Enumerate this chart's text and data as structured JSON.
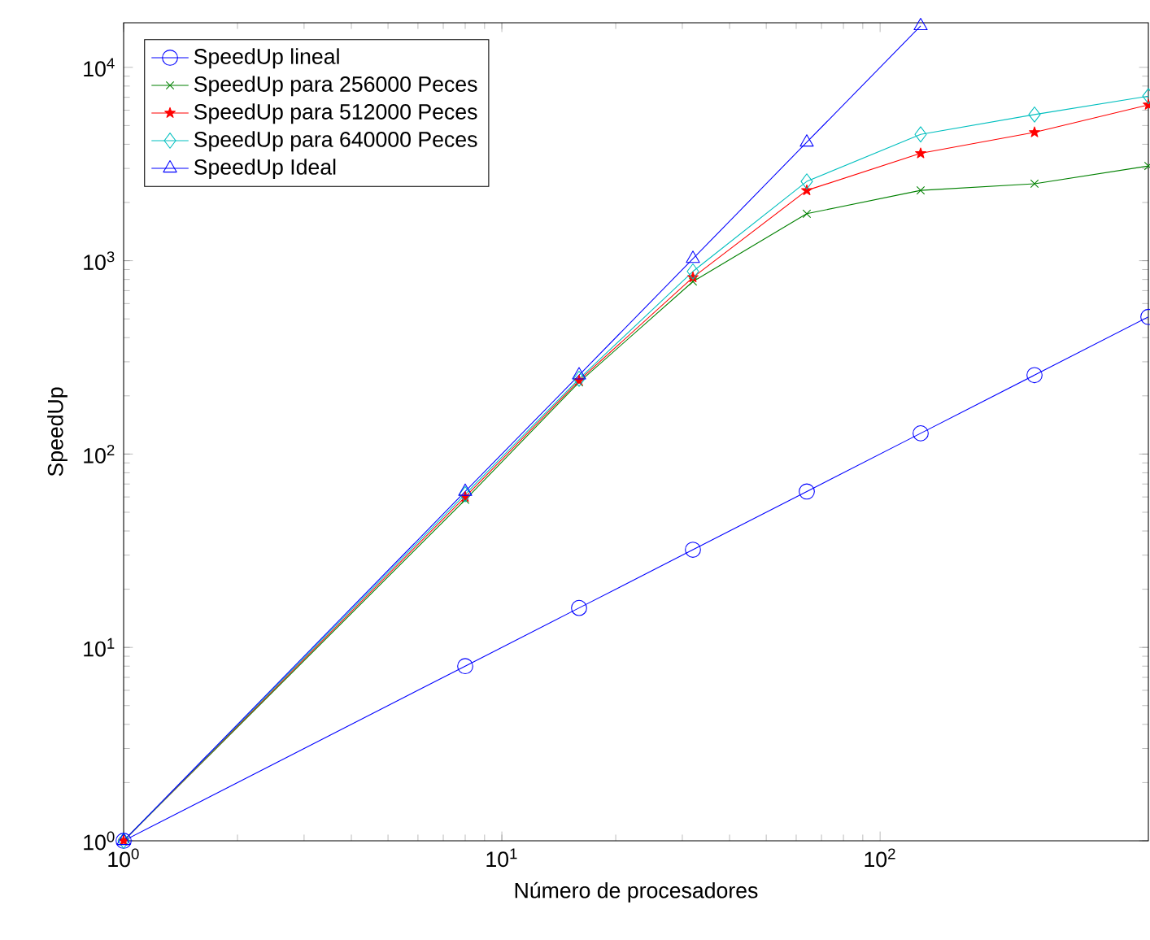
{
  "chart_data": {
    "type": "line",
    "xlabel": "Número de procesadores",
    "ylabel": "SpeedUp",
    "log": "xy",
    "xlim": [
      1,
      512
    ],
    "ylim": [
      1,
      17000
    ],
    "xticks": [
      {
        "value": 1,
        "label": "10$^{0}$"
      },
      {
        "value": 10,
        "label": "10$^{1}$"
      },
      {
        "value": 100,
        "label": "10$^{2}$"
      }
    ],
    "yticks": [
      {
        "value": 1,
        "label": "10$^{0}$"
      },
      {
        "value": 10,
        "label": "10$^{1}$"
      },
      {
        "value": 100,
        "label": "10$^{2}$"
      },
      {
        "value": 1000,
        "label": "10$^{3}$"
      },
      {
        "value": 10000,
        "label": "10$^{4}$"
      }
    ],
    "grid": false,
    "legend": "top left",
    "series": [
      {
        "name": "SpeedUp lineal",
        "color": "#0000ff",
        "marker": "circle",
        "x": [
          1,
          8,
          16,
          32,
          64,
          128,
          256,
          512
        ],
        "values": [
          1,
          8,
          16,
          32,
          64,
          128,
          256,
          512
        ]
      },
      {
        "name": "SpeedUp para 256000 Peces",
        "color": "#008000",
        "marker": "cross",
        "x": [
          1,
          8,
          16,
          32,
          64,
          128,
          256,
          512
        ],
        "values": [
          1,
          58,
          235,
          780,
          1750,
          2310,
          2500,
          3090
        ]
      },
      {
        "name": "SpeedUp para 512000 Peces",
        "color": "#ff0000",
        "marker": "star",
        "x": [
          1,
          8,
          16,
          32,
          64,
          128,
          256,
          512
        ],
        "values": [
          1,
          60,
          240,
          820,
          2310,
          3590,
          4610,
          6400
        ]
      },
      {
        "name": "SpeedUp para 640000 Peces",
        "color": "#00bfbf",
        "marker": "diamond",
        "x": [
          1,
          8,
          16,
          32,
          64,
          128,
          256,
          512
        ],
        "values": [
          1,
          62,
          245,
          880,
          2570,
          4500,
          5700,
          7100
        ]
      },
      {
        "name": "SpeedUp Ideal",
        "color": "#0000ff",
        "marker": "triangle",
        "x": [
          1,
          8,
          16,
          32,
          64,
          128
        ],
        "values": [
          1,
          64,
          256,
          1024,
          4096,
          16384
        ]
      }
    ]
  }
}
